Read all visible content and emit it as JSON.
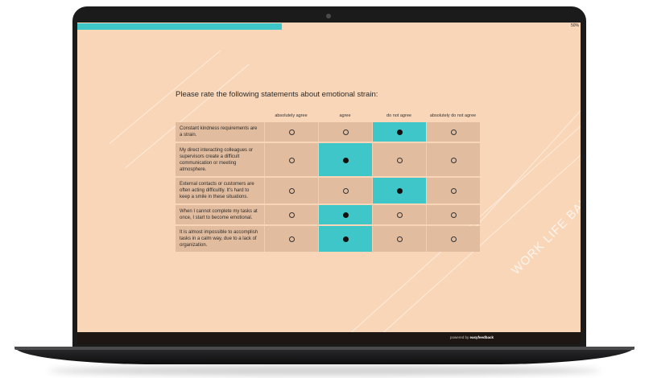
{
  "progress": {
    "text": "50%",
    "fraction": 0.5
  },
  "question": "Please rate the following statements about emotional strain:",
  "columns": [
    "absolutely agree",
    "agree",
    "do not agree",
    "absolutely do not agree"
  ],
  "rows": [
    {
      "statement": "Constant kindness requirements are a strain.",
      "selected": 2
    },
    {
      "statement": "My direct interacting colleagues or supervisors create a difficult communication or meeting atmosphere.",
      "selected": 1
    },
    {
      "statement": "External contacts or customers are often acting difficultly. It's hard to keep a smile in these situations.",
      "selected": 2
    },
    {
      "statement": "When I cannot complete my tasks at once, I start to become emotional.",
      "selected": 1
    },
    {
      "statement": "It is almost impossible to accomplish tasks in a calm way, due to a lack of organization.",
      "selected": 1
    }
  ],
  "watermark": "WORK LIFE BALANCE",
  "footer": {
    "powered_prefix": "powered by ",
    "brand": "easyfeedback"
  },
  "colors": {
    "accent": "#3fc6c8",
    "background": "#f9d6b8",
    "cell": "#e2bc9e",
    "footer": "#1d1612"
  }
}
